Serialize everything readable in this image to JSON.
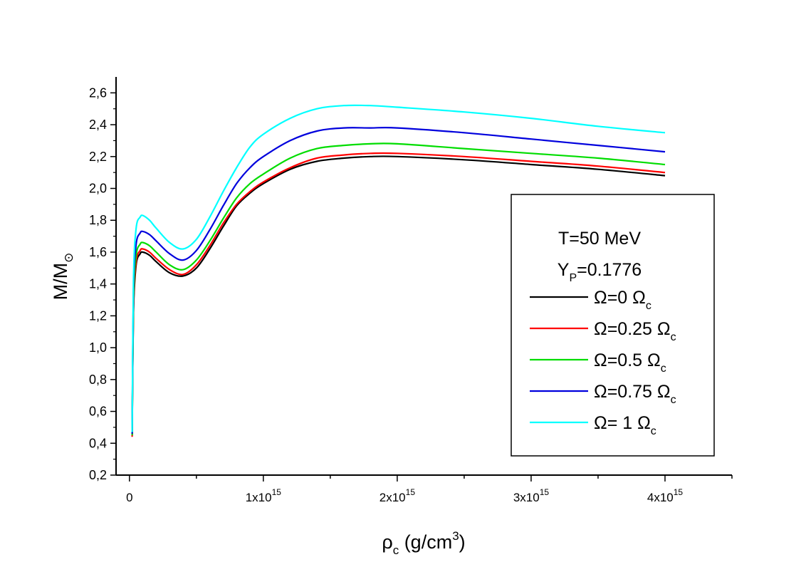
{
  "chart_data": {
    "type": "line",
    "title": "",
    "xlabel": {
      "symbol": "ρ",
      "sub": "c",
      "unit": " (g/cm",
      "sup": "3",
      "close": ")"
    },
    "ylabel": {
      "main": "M/M",
      "sub": "⊙"
    },
    "xlim": [
      -0.1,
      4.5
    ],
    "ylim": [
      0.2,
      2.7
    ],
    "x_unit": "10^15 g/cm^3",
    "x_ticks": [
      {
        "value": 0,
        "base": "0",
        "exp": ""
      },
      {
        "value": 1,
        "base": "1x10",
        "exp": "15"
      },
      {
        "value": 2,
        "base": "2x10",
        "exp": "15"
      },
      {
        "value": 3,
        "base": "3x10",
        "exp": "15"
      },
      {
        "value": 4,
        "base": "4x10",
        "exp": "15"
      }
    ],
    "y_ticks": [
      {
        "value": 0.2,
        "label": "0,2"
      },
      {
        "value": 0.4,
        "label": "0,4"
      },
      {
        "value": 0.6,
        "label": "0,6"
      },
      {
        "value": 0.8,
        "label": "0,8"
      },
      {
        "value": 1.0,
        "label": "1,0"
      },
      {
        "value": 1.2,
        "label": "1,2"
      },
      {
        "value": 1.4,
        "label": "1,4"
      },
      {
        "value": 1.6,
        "label": "1,6"
      },
      {
        "value": 1.8,
        "label": "1,8"
      },
      {
        "value": 2.0,
        "label": "2,0"
      },
      {
        "value": 2.2,
        "label": "2,2"
      },
      {
        "value": 2.4,
        "label": "2,4"
      },
      {
        "value": 2.6,
        "label": "2,6"
      }
    ],
    "legend": {
      "placement": "right",
      "header": [
        {
          "main": "T=50 MeV",
          "sub": "",
          "tail": ""
        },
        {
          "main": "Y",
          "sub": "P",
          "tail": "=0.1776"
        }
      ]
    },
    "series": [
      {
        "name": "Ω=0 Ω",
        "name_sub": "c",
        "color": "#000000",
        "x": [
          0.02,
          0.03,
          0.05,
          0.08,
          0.1,
          0.15,
          0.2,
          0.3,
          0.4,
          0.5,
          0.6,
          0.7,
          0.8,
          0.9,
          1.0,
          1.2,
          1.4,
          1.6,
          1.8,
          2.0,
          2.5,
          3.0,
          3.5,
          4.0
        ],
        "y": [
          0.45,
          1.22,
          1.52,
          1.59,
          1.6,
          1.58,
          1.54,
          1.47,
          1.45,
          1.5,
          1.62,
          1.76,
          1.89,
          1.97,
          2.03,
          2.12,
          2.17,
          2.19,
          2.2,
          2.2,
          2.18,
          2.15,
          2.12,
          2.08
        ]
      },
      {
        "name": "Ω=0.25 Ω",
        "name_sub": "c",
        "color": "#ff0000",
        "x": [
          0.02,
          0.03,
          0.05,
          0.08,
          0.1,
          0.15,
          0.2,
          0.3,
          0.4,
          0.5,
          0.6,
          0.7,
          0.8,
          0.9,
          1.0,
          1.2,
          1.4,
          1.6,
          1.8,
          2.0,
          2.5,
          3.0,
          3.5,
          4.0
        ],
        "y": [
          0.44,
          1.24,
          1.54,
          1.61,
          1.62,
          1.6,
          1.56,
          1.49,
          1.46,
          1.52,
          1.64,
          1.78,
          1.9,
          1.98,
          2.04,
          2.13,
          2.19,
          2.21,
          2.22,
          2.22,
          2.2,
          2.17,
          2.14,
          2.1
        ]
      },
      {
        "name": "Ω=0.5 Ω",
        "name_sub": "c",
        "color": "#00dd00",
        "x": [
          0.02,
          0.03,
          0.05,
          0.08,
          0.1,
          0.15,
          0.2,
          0.3,
          0.4,
          0.5,
          0.6,
          0.7,
          0.8,
          0.9,
          1.0,
          1.2,
          1.4,
          1.6,
          1.8,
          2.0,
          2.5,
          3.0,
          3.5,
          4.0
        ],
        "y": [
          0.45,
          1.28,
          1.58,
          1.65,
          1.66,
          1.64,
          1.6,
          1.52,
          1.49,
          1.55,
          1.67,
          1.81,
          1.94,
          2.03,
          2.09,
          2.19,
          2.25,
          2.27,
          2.28,
          2.28,
          2.25,
          2.22,
          2.19,
          2.15
        ]
      },
      {
        "name": "Ω=0.75 Ω",
        "name_sub": "c",
        "color": "#0000dd",
        "x": [
          0.02,
          0.03,
          0.05,
          0.08,
          0.1,
          0.15,
          0.2,
          0.3,
          0.4,
          0.5,
          0.6,
          0.7,
          0.8,
          0.9,
          1.0,
          1.2,
          1.4,
          1.6,
          1.8,
          2.0,
          2.5,
          3.0,
          3.5,
          4.0
        ],
        "y": [
          0.46,
          1.35,
          1.65,
          1.72,
          1.73,
          1.71,
          1.67,
          1.59,
          1.55,
          1.61,
          1.74,
          1.89,
          2.03,
          2.13,
          2.2,
          2.3,
          2.36,
          2.38,
          2.38,
          2.38,
          2.35,
          2.31,
          2.27,
          2.23
        ]
      },
      {
        "name": "Ω= 1 Ω",
        "name_sub": "c",
        "color": "#00ffff",
        "x": [
          0.02,
          0.03,
          0.05,
          0.08,
          0.1,
          0.15,
          0.2,
          0.3,
          0.4,
          0.5,
          0.6,
          0.7,
          0.8,
          0.9,
          1.0,
          1.2,
          1.4,
          1.6,
          1.8,
          2.0,
          2.5,
          3.0,
          3.5,
          4.0
        ],
        "y": [
          0.47,
          1.42,
          1.75,
          1.82,
          1.83,
          1.8,
          1.75,
          1.66,
          1.62,
          1.68,
          1.82,
          1.98,
          2.13,
          2.26,
          2.34,
          2.44,
          2.5,
          2.52,
          2.52,
          2.51,
          2.48,
          2.44,
          2.39,
          2.35
        ]
      }
    ]
  }
}
